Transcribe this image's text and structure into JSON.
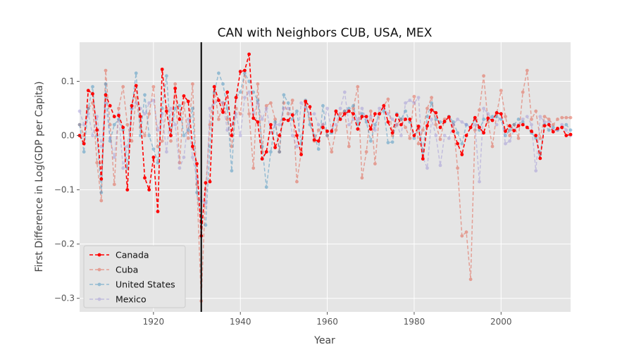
{
  "chart_data": {
    "type": "line",
    "title": "CAN with Neighbors CUB, USA, MEX",
    "xlabel": "Year",
    "ylabel": "First Difference in Log(GDP per Capita)",
    "xlim": [
      1903,
      2016
    ],
    "ylim": [
      -0.325,
      0.172
    ],
    "x_ticks": [
      1920,
      1940,
      1960,
      1980,
      2000
    ],
    "y_ticks": [
      -0.3,
      -0.2,
      -0.1,
      0.0,
      0.1
    ],
    "y_tick_labels": [
      "−0.3",
      "−0.2",
      "−0.1",
      "0.0",
      "0.1"
    ],
    "grid": true,
    "legend_position": "lower-left",
    "reference_line": {
      "x": 1931,
      "color": "#000000"
    },
    "x": [
      1903,
      1904,
      1905,
      1906,
      1907,
      1908,
      1909,
      1910,
      1911,
      1912,
      1913,
      1914,
      1915,
      1916,
      1917,
      1918,
      1919,
      1920,
      1921,
      1922,
      1923,
      1924,
      1925,
      1926,
      1927,
      1928,
      1929,
      1930,
      1931,
      1932,
      1933,
      1934,
      1935,
      1936,
      1937,
      1938,
      1939,
      1940,
      1941,
      1942,
      1943,
      1944,
      1945,
      1946,
      1947,
      1948,
      1949,
      1950,
      1951,
      1952,
      1953,
      1954,
      1955,
      1956,
      1957,
      1958,
      1959,
      1960,
      1961,
      1962,
      1963,
      1964,
      1965,
      1966,
      1967,
      1968,
      1969,
      1970,
      1971,
      1972,
      1973,
      1974,
      1975,
      1976,
      1977,
      1978,
      1979,
      1980,
      1981,
      1982,
      1983,
      1984,
      1985,
      1986,
      1987,
      1988,
      1989,
      1990,
      1991,
      1992,
      1993,
      1994,
      1995,
      1996,
      1997,
      1998,
      1999,
      2000,
      2001,
      2002,
      2003,
      2004,
      2005,
      2006,
      2007,
      2008,
      2009,
      2010,
      2011,
      2012,
      2013,
      2014,
      2015,
      2016
    ],
    "series": [
      {
        "name": "Canada",
        "color": "#ff0000",
        "opacity": 1.0,
        "values": [
          0.0,
          -0.015,
          0.083,
          0.077,
          0.01,
          -0.08,
          0.075,
          0.055,
          0.035,
          0.037,
          0.015,
          -0.1,
          0.055,
          0.092,
          0.035,
          -0.078,
          -0.1,
          -0.04,
          -0.14,
          0.122,
          0.045,
          0.0,
          0.087,
          0.03,
          0.073,
          0.063,
          -0.02,
          -0.052,
          -0.185,
          -0.087,
          -0.085,
          0.09,
          0.065,
          0.043,
          0.08,
          0.0,
          0.07,
          0.118,
          0.12,
          0.15,
          0.032,
          0.025,
          -0.043,
          -0.03,
          0.02,
          -0.022,
          0.0,
          0.03,
          0.028,
          0.038,
          0.0,
          -0.035,
          0.063,
          0.053,
          -0.008,
          -0.01,
          0.015,
          0.008,
          0.008,
          0.045,
          0.03,
          0.04,
          0.045,
          0.04,
          0.012,
          0.035,
          0.035,
          0.012,
          0.04,
          0.04,
          0.055,
          0.025,
          0.005,
          0.038,
          0.02,
          0.03,
          0.03,
          0.0,
          0.017,
          -0.043,
          0.018,
          0.047,
          0.042,
          0.015,
          0.026,
          0.034,
          0.008,
          -0.015,
          -0.035,
          0.0,
          0.015,
          0.033,
          0.015,
          0.005,
          0.032,
          0.028,
          0.042,
          0.04,
          0.008,
          0.018,
          0.009,
          0.018,
          0.02,
          0.015,
          0.008,
          0.0,
          -0.042,
          0.018,
          0.02,
          0.007,
          0.013,
          0.015,
          0.0,
          0.002
        ]
      },
      {
        "name": "Cuba",
        "color": "#e24a33",
        "opacity": 0.45,
        "values": [
          0.02,
          0.0,
          0.05,
          0.06,
          -0.05,
          -0.12,
          0.12,
          0.02,
          -0.09,
          0.05,
          0.09,
          0.02,
          -0.01,
          0.07,
          0.015,
          0.0,
          0.04,
          0.09,
          -0.02,
          -0.01,
          0.05,
          -0.01,
          0.095,
          -0.05,
          0.06,
          -0.005,
          0.095,
          -0.09,
          -0.305,
          -0.1,
          0.02,
          0.09,
          0.03,
          0.06,
          0.03,
          -0.02,
          0.05,
          0.04,
          0.12,
          0.04,
          -0.06,
          0.095,
          -0.03,
          0.055,
          0.06,
          0.03,
          -0.03,
          0.06,
          0.04,
          0.065,
          -0.085,
          -0.03,
          0.06,
          0.03,
          -0.01,
          0.01,
          0.02,
          0.0,
          -0.03,
          0.01,
          0.04,
          0.045,
          -0.02,
          0.05,
          0.09,
          -0.078,
          -0.03,
          0.045,
          -0.052,
          0.04,
          0.055,
          0.067,
          0.0,
          0.02,
          0.03,
          0.015,
          -0.005,
          0.072,
          -0.015,
          0.01,
          0.05,
          0.07,
          0.02,
          -0.007,
          0.03,
          0.035,
          0.02,
          -0.06,
          -0.185,
          -0.178,
          -0.265,
          0.01,
          0.047,
          0.11,
          0.025,
          -0.02,
          0.04,
          0.083,
          0.035,
          0.0,
          0.02,
          -0.005,
          0.08,
          0.12,
          0.03,
          0.045,
          -0.005,
          0.035,
          0.03,
          0.02,
          0.03,
          0.033,
          0.033,
          0.033
        ]
      },
      {
        "name": "United States",
        "color": "#348abd",
        "opacity": 0.45,
        "values": [
          0.02,
          -0.03,
          0.05,
          0.09,
          0.0,
          -0.105,
          0.095,
          -0.01,
          0.02,
          0.03,
          0.01,
          -0.06,
          0.05,
          0.115,
          0.0,
          0.075,
          0.0,
          -0.025,
          -0.05,
          0.05,
          0.11,
          0.0,
          0.05,
          0.055,
          0.0,
          0.01,
          0.05,
          -0.105,
          -0.16,
          -0.165,
          -0.02,
          0.08,
          0.115,
          0.095,
          0.05,
          -0.065,
          0.07,
          0.08,
          0.115,
          0.1,
          0.08,
          0.065,
          -0.02,
          -0.095,
          -0.03,
          0.025,
          -0.03,
          0.075,
          0.06,
          0.03,
          0.045,
          -0.015,
          0.065,
          0.02,
          0.0,
          -0.025,
          0.055,
          0.0,
          0.005,
          0.045,
          0.03,
          0.045,
          0.05,
          0.055,
          0.02,
          0.04,
          0.025,
          -0.01,
          0.02,
          0.04,
          0.045,
          -0.013,
          -0.012,
          0.04,
          0.03,
          0.045,
          0.025,
          -0.005,
          0.015,
          -0.03,
          0.035,
          0.06,
          0.03,
          0.025,
          0.025,
          0.035,
          0.025,
          0.005,
          -0.015,
          0.02,
          0.015,
          0.03,
          0.01,
          0.03,
          0.03,
          0.035,
          0.035,
          0.03,
          0.0,
          0.01,
          0.02,
          0.03,
          0.025,
          0.015,
          0.005,
          -0.005,
          -0.035,
          0.02,
          0.01,
          0.015,
          0.01,
          0.015,
          0.02,
          0.01
        ]
      },
      {
        "name": "Mexico",
        "color": "#988ed5",
        "opacity": 0.45,
        "values": [
          0.045,
          0.02,
          0.04,
          0.0,
          0.035,
          -0.02,
          0.06,
          -0.005,
          -0.04,
          0.04,
          -0.06,
          -0.02,
          0.05,
          0.06,
          0.05,
          0.04,
          0.06,
          0.065,
          0.01,
          0.04,
          -0.03,
          0.05,
          0.02,
          -0.06,
          -0.04,
          0.03,
          -0.04,
          -0.08,
          -0.12,
          -0.125,
          0.05,
          0.06,
          0.065,
          0.06,
          0.01,
          0.02,
          0.04,
          0.0,
          0.07,
          0.08,
          0.04,
          0.06,
          0.03,
          0.05,
          0.005,
          0.02,
          0.02,
          0.05,
          0.05,
          0.0,
          -0.02,
          0.06,
          0.05,
          0.04,
          0.04,
          0.02,
          0.02,
          0.05,
          0.01,
          0.02,
          0.05,
          0.08,
          0.02,
          0.03,
          0.03,
          0.05,
          0.03,
          0.035,
          0.01,
          0.05,
          0.05,
          0.04,
          0.03,
          0.02,
          0.0,
          0.06,
          0.065,
          0.06,
          0.07,
          -0.04,
          -0.06,
          0.03,
          0.0,
          -0.055,
          0.0,
          -0.005,
          0.02,
          0.03,
          0.025,
          0.02,
          0.015,
          0.02,
          -0.085,
          0.05,
          0.04,
          0.03,
          0.02,
          0.04,
          -0.015,
          -0.01,
          0.01,
          0.02,
          0.03,
          0.035,
          0.02,
          -0.065,
          0.035,
          0.025,
          0.025,
          0.01,
          0.01,
          0.02,
          0.01,
          0.0
        ]
      }
    ]
  }
}
